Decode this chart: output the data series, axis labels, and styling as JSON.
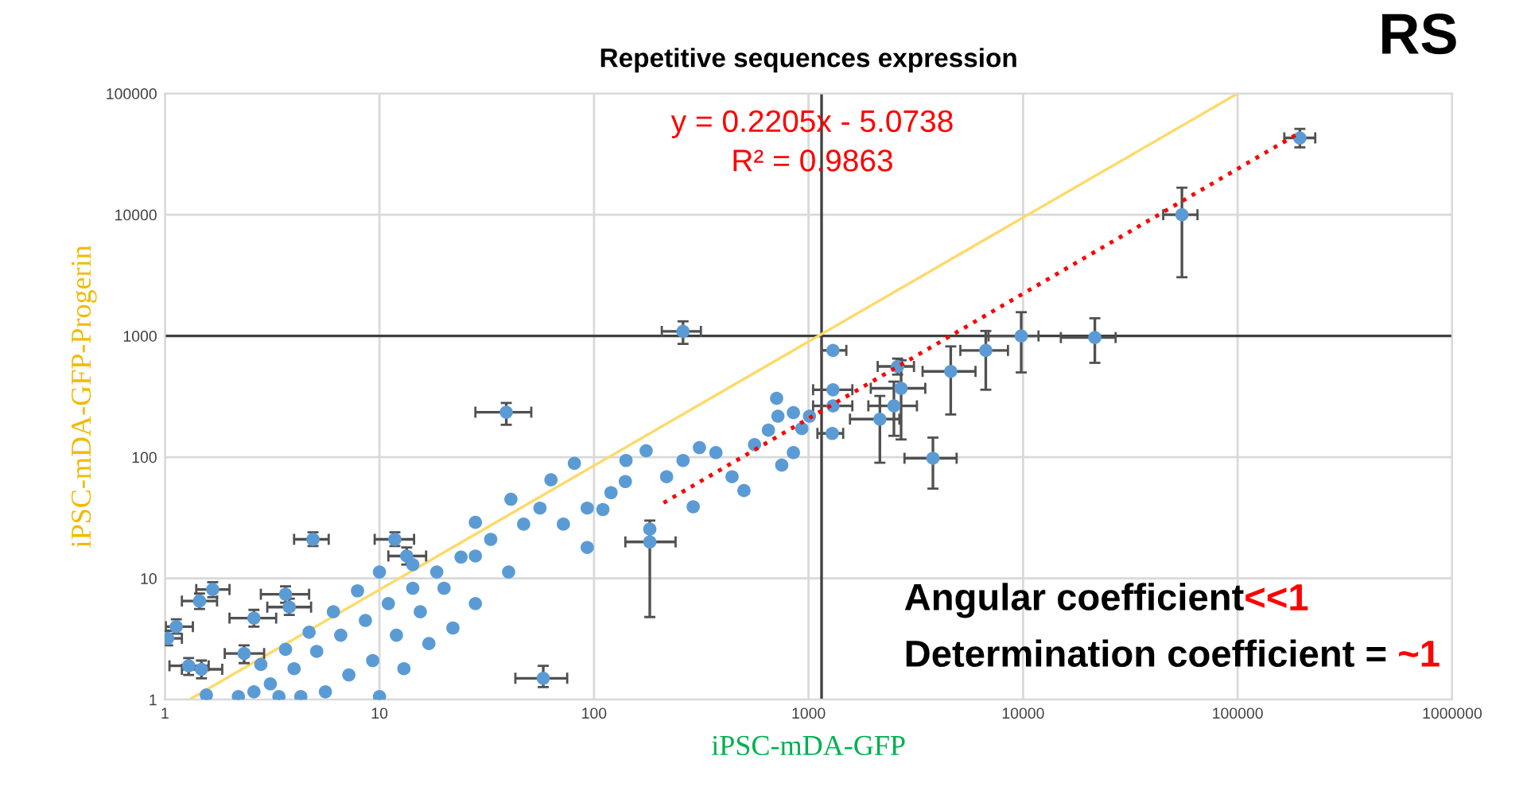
{
  "chart_data": {
    "type": "scatter",
    "title": "Repetitive sequences expression",
    "xlabel": "iPSC-mDA-GFP",
    "ylabel": "iPSC-mDA-GFP-Progerin",
    "annotations": [
      "y = 0.2205x - 5.0738",
      "R² = 0.9863",
      "RS",
      "Angular coefficient",
      "<<1",
      "Determination coefficient = ",
      "~1"
    ],
    "log": "xy",
    "grid": true,
    "legend": false,
    "xlim": [
      1,
      1000000
    ],
    "ylim": [
      1,
      100000
    ],
    "xticks": [
      1,
      10,
      100,
      1000,
      10000,
      100000,
      1000000
    ],
    "yticks": [
      1,
      10,
      100,
      1000,
      10000,
      100000
    ],
    "ref_lines": [
      {
        "axis": "y",
        "value": 1000,
        "color": "#404040"
      },
      {
        "axis": "x",
        "value": 1150,
        "color": "#404040"
      }
    ],
    "series": [
      {
        "type": "line",
        "color": "#ffd966",
        "marker": "none",
        "line_style": "solid",
        "x": [
          1.3,
          100000
        ],
        "values": [
          1,
          100000
        ]
      },
      {
        "color": "#5b9bd5",
        "marker": "circle",
        "x": [
          195000,
          55000,
          21600,
          9800,
          6700,
          4600,
          3800,
          2600,
          2700,
          2500,
          2150,
          1300,
          1300,
          1300,
          1290,
          260,
          39,
          58,
          4.9,
          11.8,
          13.4,
          1.67,
          1.45,
          2.6,
          3.65,
          3.8,
          1.13,
          1.03,
          1.29,
          1.48,
          2.34,
          81,
          63,
          41,
          28,
          175,
          310,
          710,
          850,
          930,
          650,
          750,
          500,
          182,
          182,
          290,
          140,
          110,
          93,
          56,
          47,
          33,
          24,
          18.5,
          14.3,
          11,
          8.6,
          6.6,
          5.1,
          4.0,
          3.1,
          2.6,
          28,
          20,
          15.5,
          12,
          9.3,
          7.2,
          5.6,
          40,
          22,
          28,
          17,
          13,
          10,
          4.3,
          3.4,
          2.2,
          1.56,
          14.3,
          10,
          7.9,
          6.1,
          4.7,
          3.65,
          2.8,
          72,
          93,
          120,
          141,
          218,
          260,
          370,
          440,
          560,
          850,
          1010,
          720
        ],
        "values": [
          43000,
          10000,
          970,
          1000,
          760,
          510,
          98,
          560,
          370,
          265,
          206,
          760,
          360,
          265,
          157,
          1090,
          235,
          1.5,
          21,
          21,
          15.3,
          8.1,
          6.5,
          4.7,
          7.4,
          5.8,
          4.0,
          3.2,
          1.9,
          1.78,
          2.4,
          89,
          65,
          45,
          29,
          113,
          120,
          306,
          233,
          172,
          167,
          86,
          53,
          20,
          25.5,
          39,
          63,
          37,
          18,
          38,
          28,
          21,
          15,
          11.3,
          8.3,
          6.2,
          4.5,
          3.4,
          2.5,
          1.8,
          1.35,
          1.16,
          15.3,
          8.3,
          5.3,
          3.4,
          2.1,
          1.6,
          1.16,
          11.3,
          3.9,
          6.2,
          2.9,
          1.8,
          1.06,
          1.06,
          1.06,
          1.06,
          1.09,
          13,
          11.3,
          7.9,
          5.3,
          3.6,
          2.6,
          1.95,
          28,
          38,
          51,
          94,
          69,
          94,
          109,
          69,
          127,
          109,
          218,
          218
        ],
        "errors": [
          [
            36000,
            51000
          ],
          [
            3050,
            16700
          ],
          [
            600,
            1400
          ],
          [
            500,
            1570
          ],
          [
            360,
            1100
          ],
          [
            225,
            820
          ],
          [
            55,
            145
          ],
          [
            480,
            650
          ],
          [
            140,
            630
          ],
          [
            150,
            420
          ],
          [
            90,
            320
          ],
          null,
          null,
          null,
          null,
          [
            860,
            1320
          ],
          [
            185,
            280
          ],
          [
            1.27,
            1.9
          ],
          [
            18.5,
            24
          ],
          [
            18.5,
            24
          ],
          [
            13,
            18
          ],
          [
            7,
            9.3
          ],
          [
            5.6,
            7.5
          ],
          [
            4,
            5.5
          ],
          [
            6.3,
            8.6
          ],
          [
            5,
            6.8
          ],
          [
            3.5,
            4.6
          ],
          [
            2.8,
            3.7
          ],
          [
            1.6,
            2.2
          ],
          [
            1.5,
            2.1
          ],
          [
            2,
            2.8
          ],
          null,
          null,
          null,
          null,
          null,
          null,
          null,
          null,
          null,
          null,
          null,
          null,
          [
            4.8,
            30
          ],
          null,
          null,
          null,
          null,
          null,
          null,
          null,
          null,
          null,
          null,
          null,
          null,
          null,
          null,
          null,
          null,
          null,
          null,
          null,
          null,
          null,
          null,
          null,
          null,
          null,
          null,
          null,
          null,
          null,
          null,
          null,
          null,
          null,
          null,
          null,
          null,
          null,
          null,
          null,
          null,
          null,
          null,
          null,
          null,
          null,
          null,
          null,
          null,
          null,
          null,
          null,
          null,
          null,
          null
        ],
        "xerrors": [
          [
            165000,
            230000
          ],
          [
            45000,
            65000
          ],
          [
            15000,
            27000
          ],
          [
            6900,
            11800
          ],
          [
            5100,
            8500
          ],
          [
            3400,
            6000
          ],
          [
            2800,
            4900
          ],
          [
            2100,
            3100
          ],
          [
            1950,
            3500
          ],
          [
            1900,
            3200
          ],
          [
            1560,
            2650
          ],
          [
            1150,
            1500
          ],
          [
            1050,
            1600
          ],
          [
            1050,
            1600
          ],
          [
            1100,
            1450
          ],
          [
            207,
            315
          ],
          [
            28,
            51
          ],
          [
            43,
            75
          ],
          [
            4.0,
            5.8
          ],
          [
            9.5,
            14.5
          ],
          [
            11,
            16.5
          ],
          [
            1.4,
            2
          ],
          [
            1.2,
            1.75
          ],
          [
            2,
            3.3
          ],
          [
            2.8,
            4.7
          ],
          [
            3,
            4.8
          ],
          [
            1.01,
            1.35
          ],
          [
            1.01,
            1.2
          ],
          [
            1.05,
            1.6
          ],
          [
            1.2,
            1.85
          ],
          [
            1.9,
            2.9
          ],
          null,
          null,
          null,
          null,
          null,
          null,
          null,
          null,
          null,
          null,
          null,
          null,
          [
            140,
            240
          ],
          null,
          null,
          null,
          null,
          null,
          null,
          null,
          null,
          null,
          null,
          null,
          null,
          null,
          null,
          null,
          null,
          null,
          null,
          null,
          null,
          null,
          null,
          null,
          null,
          null,
          null,
          null,
          null,
          null,
          null,
          null,
          null,
          null,
          null,
          null,
          null,
          null,
          null,
          null,
          null,
          null,
          null,
          null,
          null,
          null,
          null,
          null,
          null,
          null,
          null,
          null,
          null,
          null,
          null
        ]
      },
      {
        "type": "line",
        "color": "#ff0000",
        "marker": "none",
        "line_style": "dotted",
        "x": [
          211,
          187000
        ],
        "values": [
          42,
          45600
        ]
      }
    ]
  }
}
